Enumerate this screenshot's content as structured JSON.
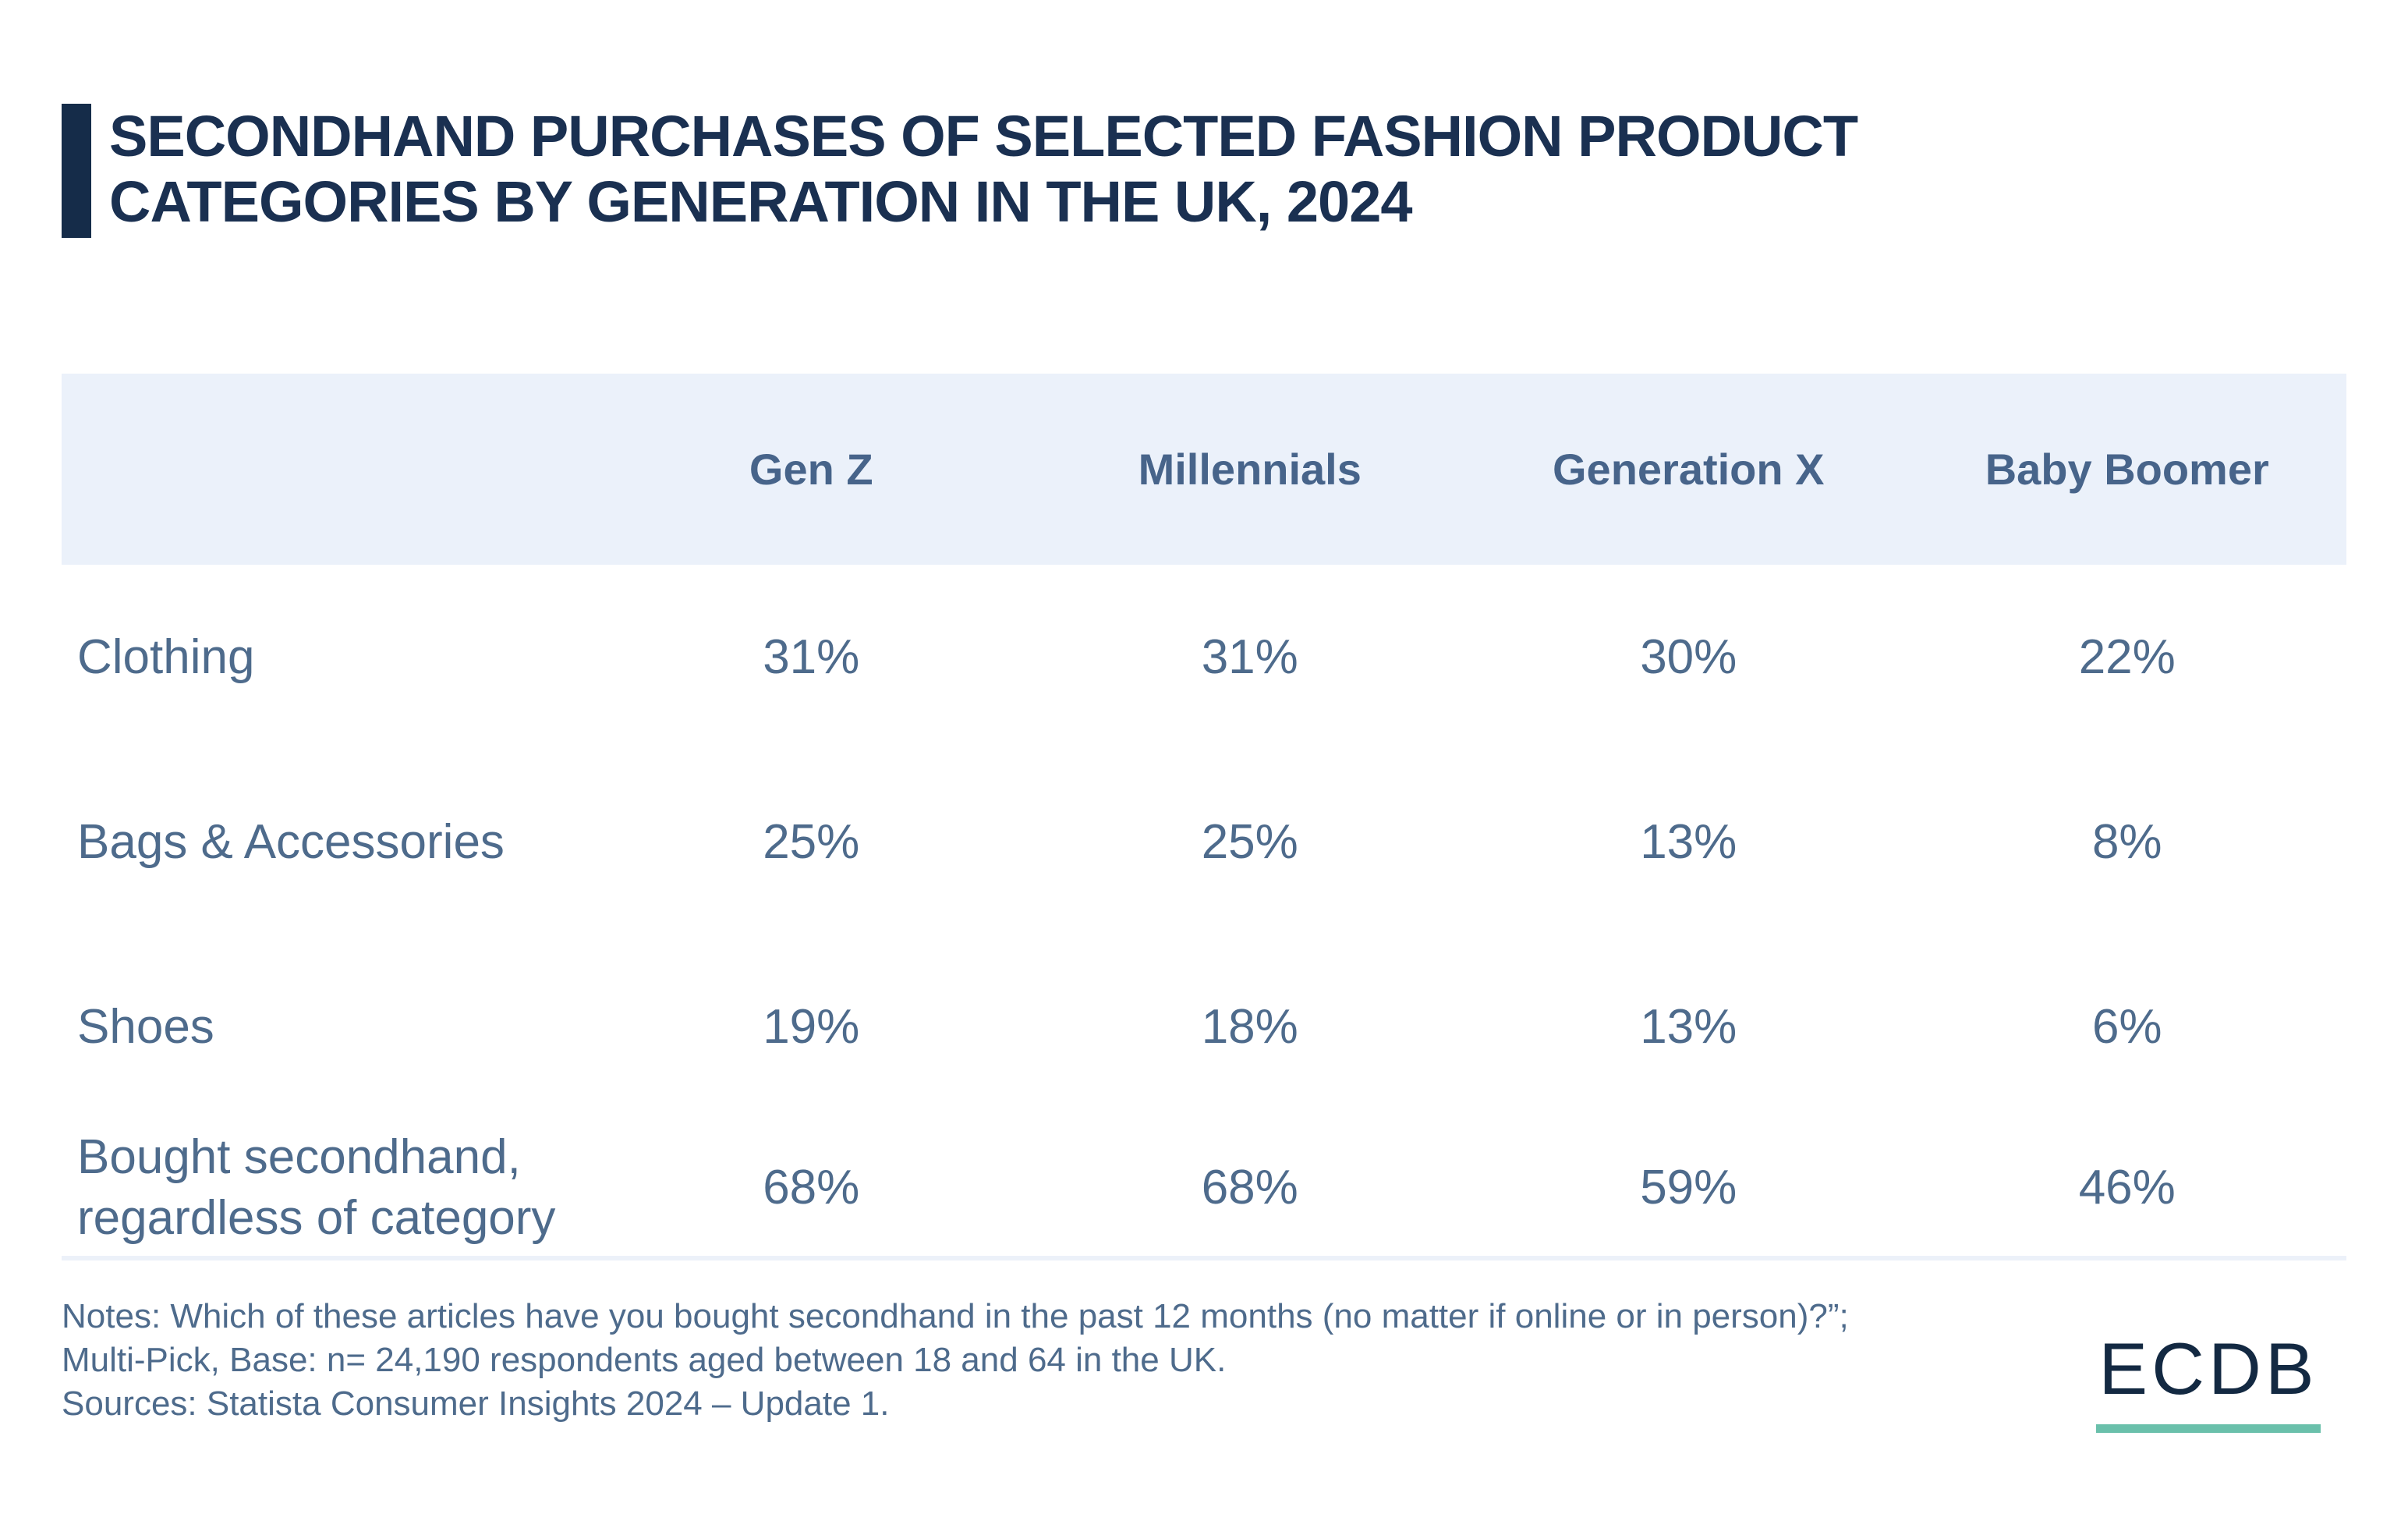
{
  "title": {
    "text": "SECONDHAND PURCHASES OF SELECTED FASHION PRODUCT CATEGORIES BY GENERATION IN THE UK, 2024"
  },
  "table": {
    "headers": [
      "Gen Z",
      "Millennials",
      "Generation X",
      "Baby Boomer"
    ],
    "rows": [
      {
        "label": "Clothing",
        "values": [
          "31%",
          "31%",
          "30%",
          "22%"
        ]
      },
      {
        "label": "Bags & Accessories",
        "values": [
          "25%",
          "25%",
          "13%",
          "8%"
        ]
      },
      {
        "label": "Shoes",
        "values": [
          "19%",
          "18%",
          "13%",
          "6%"
        ]
      },
      {
        "label": "Bought secondhand, regardless of category",
        "values": [
          "68%",
          "68%",
          "59%",
          "46%"
        ]
      }
    ]
  },
  "notes": {
    "notes_line": "Notes: Which of these articles have you bought secondhand in the past 12 months (no matter if online or in person)?”; Multi-Pick, Base: n= 24,190 respondents aged between 18 and 64 in the UK.",
    "sources_line": "Sources: Statista Consumer Insights 2024 – Update 1."
  },
  "logo": {
    "text": "ECDB"
  },
  "colors": {
    "title_navy": "#1a3051",
    "accent_bar_navy": "#152c49",
    "header_row_bg": "#ebf1fa",
    "header_text": "#47648a",
    "body_text": "#4e6b8c",
    "divider": "#ecf1f9",
    "logo_navy": "#132942",
    "logo_underline_teal": "#6ac0ab",
    "page_bg": "#ffffff"
  },
  "chart_data": {
    "type": "table",
    "title": "Secondhand Purchases of Selected Fashion Product Categories by Generation in the UK, 2024",
    "unit": "%",
    "categories": [
      "Clothing",
      "Bags & Accessories",
      "Shoes",
      "Bought secondhand, regardless of category"
    ],
    "series": [
      {
        "name": "Gen Z",
        "values": [
          31,
          25,
          19,
          68
        ]
      },
      {
        "name": "Millennials",
        "values": [
          31,
          25,
          18,
          68
        ]
      },
      {
        "name": "Generation X",
        "values": [
          30,
          13,
          13,
          59
        ]
      },
      {
        "name": "Baby Boomer",
        "values": [
          22,
          8,
          6,
          46
        ]
      }
    ],
    "notes": "Which of these articles have you bought secondhand in the past 12 months (no matter if online or in person)?; Multi-Pick, Base: n= 24,190 respondents aged between 18 and 64 in the UK.",
    "sources": "Statista Consumer Insights 2024 – Update 1."
  }
}
